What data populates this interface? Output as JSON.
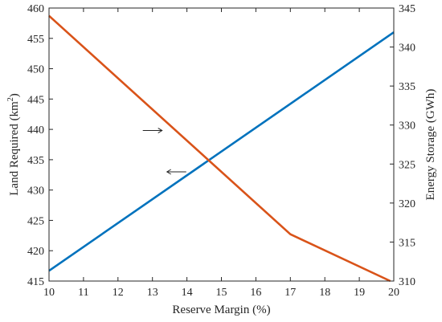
{
  "chart_data": {
    "type": "line",
    "x": {
      "label": "Reserve Margin (%)",
      "lim": [
        10,
        20
      ],
      "ticks": [
        10,
        11,
        12,
        13,
        14,
        15,
        16,
        17,
        18,
        19,
        20
      ]
    },
    "y_left": {
      "label": "Land Required (km",
      "label_sup": "2",
      "label_close": ")",
      "lim": [
        415,
        460
      ],
      "ticks": [
        415,
        420,
        425,
        430,
        435,
        440,
        445,
        450,
        455,
        460
      ]
    },
    "y_right": {
      "label": "Energy Storage (GWh)",
      "lim": [
        310,
        345
      ],
      "ticks": [
        310,
        315,
        320,
        325,
        330,
        335,
        340,
        345
      ]
    },
    "series": [
      {
        "axis": "left",
        "color": "#0072BD",
        "points": [
          [
            10,
            416.7
          ],
          [
            20,
            456
          ]
        ]
      },
      {
        "axis": "right",
        "color": "#D95319",
        "points": [
          [
            10,
            344
          ],
          [
            17,
            316
          ],
          [
            19.9,
            310
          ]
        ]
      }
    ],
    "annotations": [
      {
        "text": "→",
        "points_to": "right",
        "at": [
          13.0,
          329.3
        ]
      },
      {
        "text": "←",
        "points_to": "left",
        "at": [
          13.7,
          433
        ]
      }
    ],
    "grid": false,
    "box": true
  }
}
